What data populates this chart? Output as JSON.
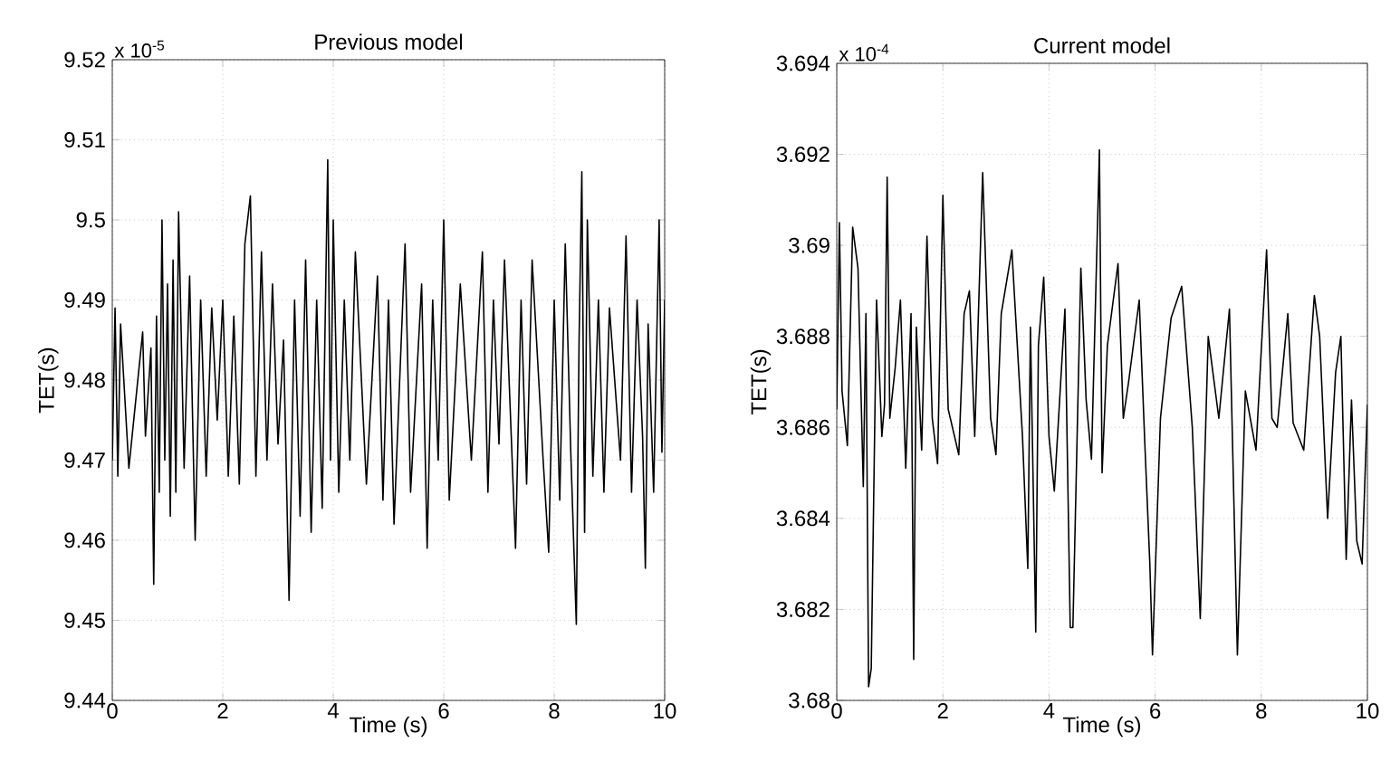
{
  "chart_data": [
    {
      "type": "line",
      "title": "Previous model",
      "xlabel": "Time (s)",
      "ylabel": "TET(s)",
      "annotations": [
        "x 10$^{-5}$"
      ],
      "grid": true,
      "color": "#000000",
      "xlim": [
        0,
        10
      ],
      "ylim": [
        9.44,
        9.52
      ],
      "xticks": [
        0,
        2,
        4,
        6,
        8,
        10
      ],
      "yticks": [
        9.44,
        9.45,
        9.46,
        9.47,
        9.48,
        9.49,
        9.5,
        9.51,
        9.52
      ],
      "x": [
        0,
        0.05,
        0.1,
        0.15,
        0.3,
        0.55,
        0.6,
        0.7,
        0.75,
        0.8,
        0.85,
        0.9,
        0.95,
        1.0,
        1.05,
        1.1,
        1.15,
        1.2,
        1.3,
        1.4,
        1.5,
        1.6,
        1.7,
        1.8,
        1.9,
        2.0,
        2.1,
        2.2,
        2.3,
        2.4,
        2.5,
        2.6,
        2.7,
        2.8,
        2.9,
        3.0,
        3.1,
        3.2,
        3.3,
        3.4,
        3.5,
        3.6,
        3.7,
        3.8,
        3.9,
        3.95,
        4.0,
        4.1,
        4.2,
        4.3,
        4.4,
        4.6,
        4.8,
        4.9,
        5.0,
        5.1,
        5.3,
        5.4,
        5.6,
        5.7,
        5.8,
        5.9,
        6.0,
        6.1,
        6.3,
        6.5,
        6.7,
        6.8,
        6.9,
        7.0,
        7.1,
        7.3,
        7.4,
        7.5,
        7.6,
        7.8,
        7.9,
        8.0,
        8.1,
        8.2,
        8.3,
        8.4,
        8.45,
        8.5,
        8.55,
        8.6,
        8.7,
        8.8,
        8.9,
        9.0,
        9.2,
        9.3,
        9.4,
        9.5,
        9.6,
        9.65,
        9.7,
        9.8,
        9.9,
        9.95,
        10.0
      ],
      "values": [
        9.47,
        9.489,
        9.468,
        9.487,
        9.469,
        9.486,
        9.473,
        9.484,
        9.4545,
        9.488,
        9.466,
        9.5,
        9.47,
        9.492,
        9.463,
        9.495,
        9.466,
        9.501,
        9.469,
        9.493,
        9.46,
        9.49,
        9.468,
        9.489,
        9.475,
        9.49,
        9.468,
        9.488,
        9.467,
        9.497,
        9.503,
        9.468,
        9.496,
        9.47,
        9.492,
        9.472,
        9.485,
        9.4525,
        9.49,
        9.463,
        9.495,
        9.461,
        9.49,
        9.464,
        9.5075,
        9.47,
        9.5,
        9.466,
        9.49,
        9.47,
        9.496,
        9.467,
        9.493,
        9.465,
        9.49,
        9.462,
        9.497,
        9.466,
        9.492,
        9.459,
        9.49,
        9.47,
        9.5,
        9.465,
        9.492,
        9.47,
        9.496,
        9.466,
        9.49,
        9.472,
        9.495,
        9.459,
        9.49,
        9.467,
        9.495,
        9.47,
        9.4585,
        9.49,
        9.465,
        9.497,
        9.471,
        9.4495,
        9.485,
        9.506,
        9.461,
        9.5,
        9.468,
        9.49,
        9.466,
        9.489,
        9.47,
        9.498,
        9.466,
        9.49,
        9.473,
        9.4565,
        9.487,
        9.466,
        9.5,
        9.471,
        9.49
      ]
    },
    {
      "type": "line",
      "title": "Current model",
      "xlabel": "Time (s)",
      "ylabel": "TET(s)",
      "annotations": [
        "x 10$^{-4}$"
      ],
      "grid": true,
      "color": "#000000",
      "xlim": [
        0,
        10
      ],
      "ylim": [
        3.68,
        3.694
      ],
      "xticks": [
        0,
        2,
        4,
        6,
        8,
        10
      ],
      "yticks": [
        3.68,
        3.682,
        3.684,
        3.686,
        3.688,
        3.69,
        3.692,
        3.694
      ],
      "x": [
        0,
        0.05,
        0.1,
        0.2,
        0.3,
        0.4,
        0.5,
        0.55,
        0.6,
        0.65,
        0.75,
        0.85,
        0.9,
        0.95,
        1.0,
        1.1,
        1.2,
        1.3,
        1.4,
        1.45,
        1.5,
        1.6,
        1.7,
        1.8,
        1.9,
        2.0,
        2.1,
        2.3,
        2.4,
        2.5,
        2.6,
        2.75,
        2.9,
        3.0,
        3.1,
        3.3,
        3.5,
        3.6,
        3.65,
        3.75,
        3.8,
        3.9,
        4.0,
        4.1,
        4.3,
        4.4,
        4.45,
        4.6,
        4.7,
        4.8,
        4.95,
        5.0,
        5.1,
        5.3,
        5.4,
        5.5,
        5.7,
        5.8,
        5.9,
        5.95,
        6.1,
        6.3,
        6.5,
        6.7,
        6.85,
        7.0,
        7.2,
        7.4,
        7.55,
        7.7,
        7.9,
        8.1,
        8.2,
        8.3,
        8.5,
        8.6,
        8.8,
        9.0,
        9.1,
        9.25,
        9.4,
        9.5,
        9.6,
        9.7,
        9.8,
        9.9,
        10.0
      ],
      "values": [
        3.6864,
        3.6905,
        3.6868,
        3.6856,
        3.6904,
        3.6895,
        3.6847,
        3.6885,
        3.6803,
        3.6807,
        3.6888,
        3.6858,
        3.6865,
        3.6915,
        3.6862,
        3.6873,
        3.6888,
        3.6851,
        3.6885,
        3.6809,
        3.6882,
        3.6855,
        3.6902,
        3.6862,
        3.6852,
        3.6911,
        3.6864,
        3.6854,
        3.6885,
        3.689,
        3.6858,
        3.6916,
        3.6862,
        3.6854,
        3.6885,
        3.6899,
        3.6858,
        3.6829,
        3.6882,
        3.6815,
        3.6878,
        3.6893,
        3.6858,
        3.6846,
        3.6886,
        3.6816,
        3.6816,
        3.6895,
        3.6866,
        3.6853,
        3.6921,
        3.685,
        3.6878,
        3.6896,
        3.6862,
        3.687,
        3.6888,
        3.6858,
        3.683,
        3.681,
        3.6862,
        3.6884,
        3.6891,
        3.686,
        3.6818,
        3.688,
        3.6862,
        3.6886,
        3.681,
        3.6868,
        3.6855,
        3.6899,
        3.6862,
        3.686,
        3.6885,
        3.6861,
        3.6855,
        3.6889,
        3.688,
        3.684,
        3.6872,
        3.688,
        3.6831,
        3.6866,
        3.6835,
        3.683,
        3.6865
      ]
    }
  ]
}
